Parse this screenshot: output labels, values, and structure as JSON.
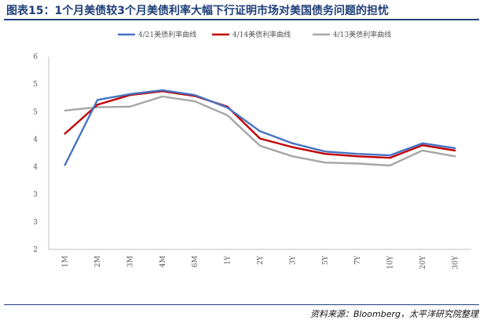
{
  "header": {
    "title": "图表15：1个月美债较3个月美债利率大幅下行证明市场对美国债务问题的担忧"
  },
  "footer": {
    "source": "资料来源：Bloomberg，太平洋研究院整理"
  },
  "chart_data": {
    "type": "line",
    "categories": [
      "1M",
      "2M",
      "3M",
      "4M",
      "6M",
      "1Y",
      "2Y",
      "3Y",
      "5Y",
      "7Y",
      "10Y",
      "20Y",
      "30Y"
    ],
    "ylim": [
      2,
      6
    ],
    "yticks": [
      "2",
      "3",
      "3",
      "4",
      "4",
      "5",
      "5",
      "6"
    ],
    "legend_position": "top",
    "grid": false,
    "series": [
      {
        "name": "4/21美债利率曲线",
        "color": "#4472c4",
        "values": [
          3.75,
          5.1,
          5.22,
          5.3,
          5.2,
          4.94,
          4.45,
          4.2,
          4.03,
          3.98,
          3.95,
          4.2,
          4.1
        ]
      },
      {
        "name": "4/14美债利率曲线",
        "color": "#c00000",
        "values": [
          4.4,
          5.0,
          5.2,
          5.28,
          5.18,
          4.96,
          4.3,
          4.12,
          3.98,
          3.93,
          3.9,
          4.16,
          4.05
        ]
      },
      {
        "name": "4/13美债利率曲线",
        "color": "#a6a6a6",
        "values": [
          4.88,
          4.95,
          4.96,
          5.17,
          5.07,
          4.78,
          4.15,
          3.93,
          3.8,
          3.78,
          3.74,
          4.05,
          3.93
        ]
      }
    ]
  }
}
